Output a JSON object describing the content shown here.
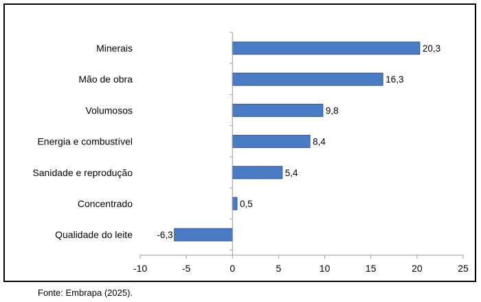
{
  "chart_data": {
    "type": "bar",
    "orientation": "horizontal",
    "title": "",
    "xlabel": "",
    "ylabel": "",
    "categories": [
      "Minerais",
      "Mão de obra",
      "Volumosos",
      "Energia e combustível",
      "Sanidade e reprodução",
      "Concentrado",
      "Qualidade do leite"
    ],
    "values": [
      20.3,
      16.3,
      9.8,
      8.4,
      5.4,
      0.5,
      -6.3
    ],
    "value_labels": [
      "20,3",
      "16,3",
      "9,8",
      "8,4",
      "5,4",
      "0,5",
      "-6,3"
    ],
    "xlim": [
      -10,
      25
    ],
    "xticks": [
      -10,
      -5,
      0,
      5,
      10,
      15,
      20,
      25
    ],
    "xtick_labels": [
      "-10",
      "-5",
      "0",
      "5",
      "10",
      "15",
      "20",
      "25"
    ],
    "grid": false,
    "legend": "none",
    "bar_color": "#4a7cc3",
    "bar_edge_color": "#2f5597"
  },
  "source": "Fonte: Embrapa (2025)."
}
